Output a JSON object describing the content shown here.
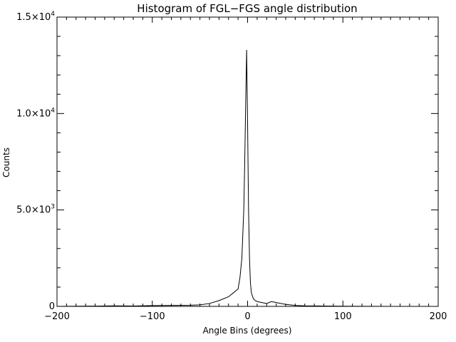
{
  "chart_data": {
    "type": "line",
    "title": "Histogram of FGL−FGS angle distribution",
    "xlabel": "Angle Bins (degrees)",
    "ylabel": "Counts",
    "xlim": [
      -200,
      200
    ],
    "ylim": [
      0,
      15000
    ],
    "x_ticks": [
      -200,
      -100,
      0,
      100,
      200
    ],
    "x_tick_labels": [
      "−200",
      "−100",
      "0",
      "100",
      "200"
    ],
    "y_ticks": [
      0,
      5000,
      10000,
      15000
    ],
    "y_tick_labels": [
      {
        "mantissa": "0",
        "exponent": ""
      },
      {
        "mantissa": "5.0×10",
        "exponent": "3"
      },
      {
        "mantissa": "1.0×10",
        "exponent": "4"
      },
      {
        "mantissa": "1.5×10",
        "exponent": "4"
      }
    ],
    "grid": false,
    "series": [
      {
        "color": "#000000",
        "x": [
          -200,
          -180,
          -160,
          -140,
          -120,
          -100,
          -80,
          -60,
          -50,
          -40,
          -30,
          -20,
          -15,
          -10,
          -8,
          -6,
          -4,
          -3,
          -2,
          -1,
          0,
          1,
          2,
          3,
          4,
          6,
          8,
          10,
          15,
          20,
          25,
          30,
          40,
          50,
          60,
          80,
          100,
          120,
          150,
          180,
          200
        ],
        "y": [
          0,
          10,
          15,
          30,
          20,
          40,
          50,
          60,
          80,
          150,
          300,
          500,
          700,
          900,
          1500,
          2500,
          5000,
          7500,
          10500,
          13300,
          9500,
          5000,
          2500,
          1200,
          700,
          400,
          300,
          250,
          200,
          150,
          250,
          200,
          100,
          50,
          30,
          20,
          10,
          5,
          0,
          0,
          0
        ]
      }
    ]
  }
}
